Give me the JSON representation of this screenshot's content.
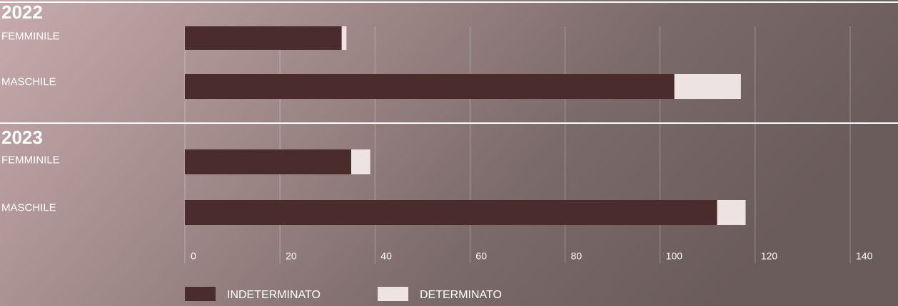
{
  "chart_data": {
    "type": "bar",
    "orientation": "horizontal",
    "stacked": true,
    "series": [
      {
        "name": "INDETERMINATO",
        "color": "#4a2c2d"
      },
      {
        "name": "DETERMINATO",
        "color": "#ede3e3"
      }
    ],
    "panels": [
      {
        "title": "2022",
        "categories": [
          "FEMMINILE",
          "MASCHILE"
        ],
        "values": [
          [
            33,
            103
          ],
          [
            1,
            14
          ]
        ]
      },
      {
        "title": "2023",
        "categories": [
          "FEMMINILE",
          "MASCHILE"
        ],
        "values": [
          [
            35,
            112
          ],
          [
            4,
            6
          ]
        ]
      }
    ],
    "xlim": [
      0,
      140
    ],
    "xticks": [
      0,
      20,
      40,
      60,
      80,
      100,
      120,
      140
    ],
    "grid": true
  }
}
